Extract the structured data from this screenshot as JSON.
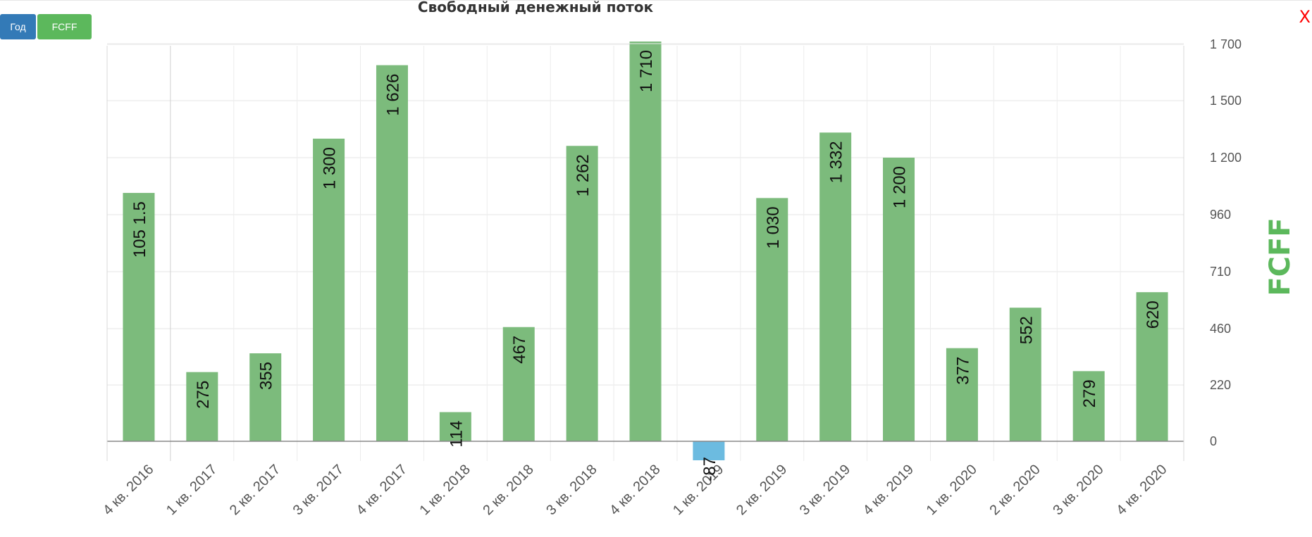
{
  "toolbar": {
    "period_label": "Год",
    "metric_label": "FCFF",
    "close_label": "X"
  },
  "colors": {
    "positive": "#7cbb7c",
    "negative": "#6cbbe0",
    "axis_title": "#5cb85c",
    "period_button": "#337ab7",
    "metric_button": "#5cb85c",
    "close": "#ff0000"
  },
  "chart_data": {
    "type": "bar",
    "title": "Свободный денежный поток",
    "ylabel": "FCFF",
    "xlabel": "",
    "y_axis_position": "right",
    "grid": true,
    "categories": [
      "4 кв. 2016",
      "1 кв. 2017",
      "2 кв. 2017",
      "3 кв. 2017",
      "4 кв. 2017",
      "1 кв. 2018",
      "2 кв. 2018",
      "3 кв. 2018",
      "4 кв. 2018",
      "1 кв. 2019",
      "2 кв. 2019",
      "3 кв. 2019",
      "4 кв. 2019",
      "1 кв. 2020",
      "2 кв. 2020",
      "3 кв. 2020",
      "4 кв. 2020"
    ],
    "values": [
      1051.5,
      275,
      355,
      1300,
      1626,
      114,
      467,
      1262,
      1710,
      -87,
      1030,
      1332,
      1200,
      377,
      552,
      279,
      620
    ],
    "data_labels": [
      "105 1.5",
      "275",
      "355",
      "1 300",
      "1 626",
      "114",
      "467",
      "1 262",
      "1 710",
      "-87",
      "1 030",
      "1 332",
      "1 200",
      "377",
      "552",
      "279",
      "620"
    ],
    "y_ticks": [
      0,
      220,
      460,
      710,
      960,
      1200,
      1500,
      1700
    ],
    "y_tick_labels": [
      "0",
      "220",
      "460",
      "710",
      "960",
      "1 200",
      "1 500",
      "1 700"
    ],
    "ylim": [
      -87,
      1710
    ]
  }
}
